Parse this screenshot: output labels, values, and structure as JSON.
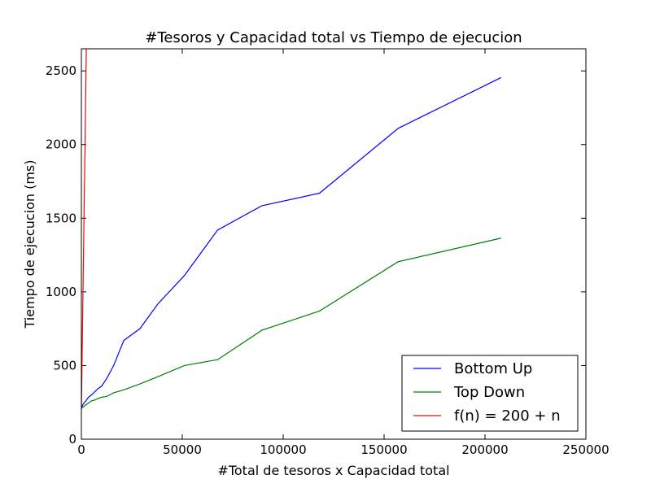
{
  "chart_data": {
    "type": "line",
    "title": "#Tesoros y Capacidad total vs Tiempo de ejecucion",
    "xlabel": "#Total de tesoros x Capacidad total",
    "ylabel": "Tiempo de ejecucion (ms)",
    "xlim": [
      0,
      250000
    ],
    "ylim": [
      0,
      2650
    ],
    "xticks": [
      0,
      50000,
      100000,
      150000,
      200000,
      250000
    ],
    "yticks": [
      0,
      500,
      1000,
      1500,
      2000,
      2500
    ],
    "grid": false,
    "legend_position": "lower-right",
    "series": [
      {
        "name": "Bottom Up",
        "color": "#0000ff",
        "x": [
          0,
          1000,
          2000,
          3500,
          5000,
          6500,
          8000,
          10000,
          12500,
          16000,
          21000,
          29000,
          38000,
          51000,
          67500,
          89500,
          118000,
          157000,
          208000
        ],
        "y": [
          215,
          240,
          255,
          285,
          300,
          320,
          340,
          360,
          410,
          500,
          670,
          750,
          920,
          1110,
          1420,
          1585,
          1670,
          2110,
          2455
        ]
      },
      {
        "name": "Top Down",
        "color": "#008000",
        "x": [
          0,
          1000,
          2000,
          3500,
          5000,
          6500,
          8000,
          10000,
          12500,
          16000,
          21000,
          29000,
          38000,
          51000,
          67500,
          89500,
          118000,
          157000,
          208000
        ],
        "y": [
          210,
          220,
          230,
          245,
          260,
          265,
          275,
          285,
          290,
          315,
          335,
          375,
          425,
          500,
          540,
          740,
          870,
          1205,
          1365
        ]
      },
      {
        "name": "f(n) = 200 + n",
        "color": "#ff0000",
        "x": [
          0,
          2450
        ],
        "y": [
          200,
          2650
        ]
      }
    ]
  }
}
